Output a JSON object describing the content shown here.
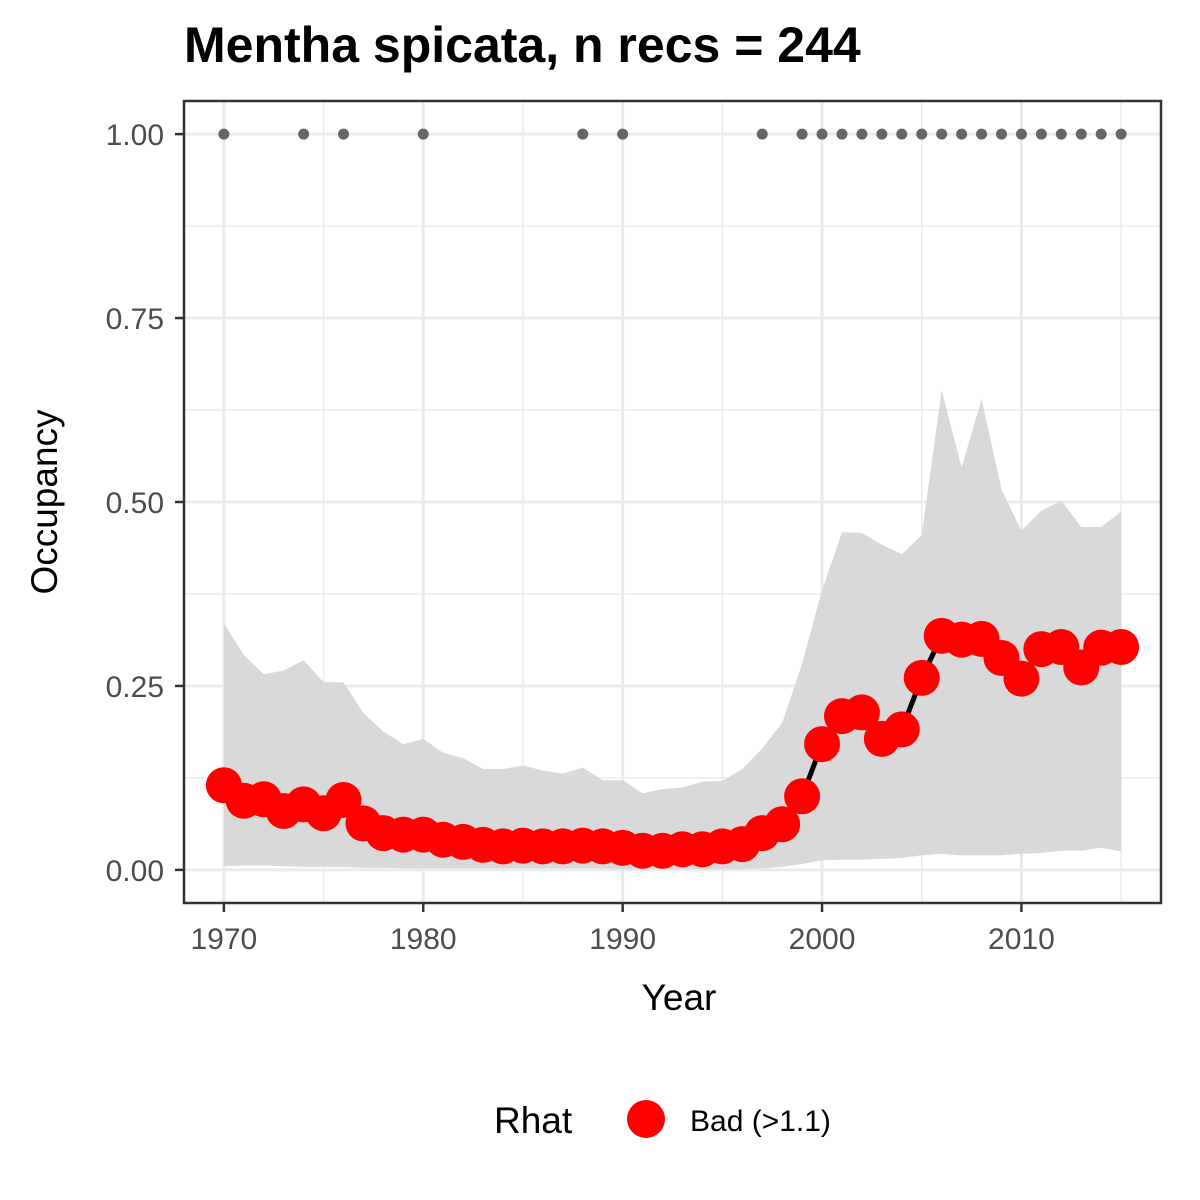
{
  "chart_data": {
    "type": "line",
    "title": "Mentha spicata, n recs = 244",
    "xlabel": "Year",
    "ylabel": "Occupancy",
    "xlim": [
      1968,
      2017
    ],
    "ylim": [
      -0.045,
      1.045
    ],
    "x_ticks": [
      1970,
      1980,
      1990,
      2000,
      2010
    ],
    "x_tick_labels": [
      "1970",
      "1980",
      "1990",
      "2000",
      "2010"
    ],
    "y_ticks": [
      0,
      0.25,
      0.5,
      0.75,
      1
    ],
    "y_tick_labels": [
      "0.00",
      "0.25",
      "0.50",
      "0.75",
      "1.00"
    ],
    "grid": true,
    "legend": {
      "title": "Rhat",
      "position": "bottom",
      "entries": [
        {
          "label": "Bad (>1.1)",
          "color": "#FF0000"
        }
      ]
    },
    "colors": {
      "point": "#FF0000",
      "line": "#000000",
      "ribbon": "#d9d9d9",
      "record_dot": "#666666"
    },
    "x": [
      1970,
      1971,
      1972,
      1973,
      1974,
      1975,
      1976,
      1977,
      1978,
      1979,
      1980,
      1981,
      1982,
      1983,
      1984,
      1985,
      1986,
      1987,
      1988,
      1989,
      1990,
      1991,
      1992,
      1993,
      1994,
      1995,
      1996,
      1997,
      1998,
      1999,
      2000,
      2001,
      2002,
      2003,
      2004,
      2005,
      2006,
      2007,
      2008,
      2009,
      2010,
      2011,
      2012,
      2013,
      2014,
      2015
    ],
    "series": [
      {
        "name": "Bad (>1.1)",
        "values": [
          0.115,
          0.094,
          0.096,
          0.08,
          0.089,
          0.077,
          0.095,
          0.063,
          0.05,
          0.048,
          0.048,
          0.041,
          0.038,
          0.034,
          0.032,
          0.033,
          0.032,
          0.032,
          0.033,
          0.032,
          0.03,
          0.026,
          0.026,
          0.028,
          0.028,
          0.032,
          0.035,
          0.05,
          0.062,
          0.1,
          0.171,
          0.209,
          0.214,
          0.178,
          0.191,
          0.261,
          0.318,
          0.313,
          0.314,
          0.288,
          0.26,
          0.3,
          0.303,
          0.275,
          0.302,
          0.303
        ],
        "lower": [
          0.005,
          0.006,
          0.006,
          0.005,
          0.004,
          0.004,
          0.004,
          0.003,
          0.003,
          0.002,
          0.002,
          0.002,
          0.002,
          0.002,
          0.002,
          0.002,
          0.002,
          0.002,
          0.002,
          0.002,
          0.001,
          0.001,
          0.001,
          0.001,
          0.001,
          0.001,
          0.001,
          0.002,
          0.004,
          0.008,
          0.013,
          0.014,
          0.014,
          0.015,
          0.016,
          0.02,
          0.022,
          0.02,
          0.02,
          0.02,
          0.022,
          0.023,
          0.026,
          0.026,
          0.03,
          0.025
        ],
        "upper": [
          0.335,
          0.292,
          0.266,
          0.271,
          0.285,
          0.255,
          0.255,
          0.213,
          0.188,
          0.171,
          0.178,
          0.159,
          0.152,
          0.137,
          0.137,
          0.142,
          0.135,
          0.131,
          0.139,
          0.122,
          0.122,
          0.104,
          0.11,
          0.112,
          0.12,
          0.121,
          0.137,
          0.165,
          0.2,
          0.28,
          0.38,
          0.459,
          0.458,
          0.442,
          0.429,
          0.455,
          0.652,
          0.547,
          0.64,
          0.517,
          0.461,
          0.488,
          0.502,
          0.466,
          0.466,
          0.487
        ]
      }
    ],
    "record_years": [
      1970,
      1974,
      1976,
      1980,
      1988,
      1990,
      1997,
      1999,
      2000,
      2001,
      2002,
      2003,
      2004,
      2005,
      2006,
      2007,
      2008,
      2009,
      2010,
      2011,
      2012,
      2013,
      2014,
      2015
    ],
    "record_value": 1.0
  }
}
